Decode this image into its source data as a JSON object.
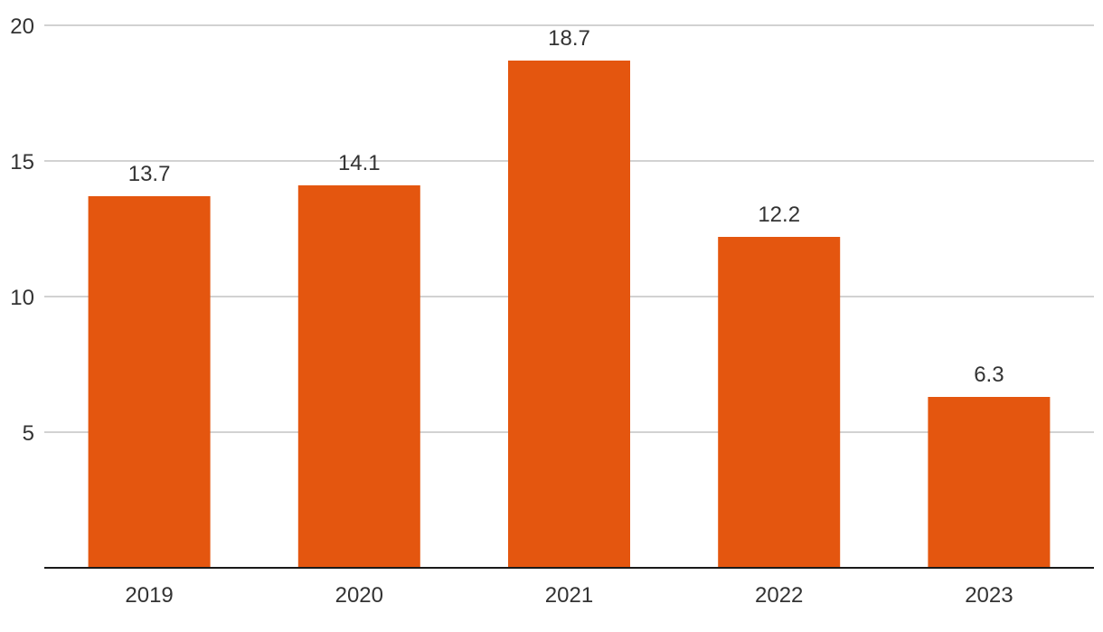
{
  "chart_data": {
    "type": "bar",
    "title": "",
    "xlabel": "",
    "ylabel": "",
    "categories": [
      "2019",
      "2020",
      "2021",
      "2022",
      "2023"
    ],
    "values": [
      13.7,
      14.1,
      18.7,
      12.2,
      6.3
    ],
    "value_labels": [
      "13.7",
      "14.1",
      "18.7",
      "12.2",
      "6.3"
    ],
    "ylim": [
      0,
      20
    ],
    "yticks": [
      5,
      10,
      15,
      20
    ],
    "ytick_labels": [
      "5",
      "10",
      "15",
      "20"
    ],
    "grid": true,
    "legend": "none",
    "colors": {
      "bar": "#e4560f",
      "grid": "#c4c4c4",
      "axis": "#1a1a1a",
      "text": "#333333"
    }
  }
}
